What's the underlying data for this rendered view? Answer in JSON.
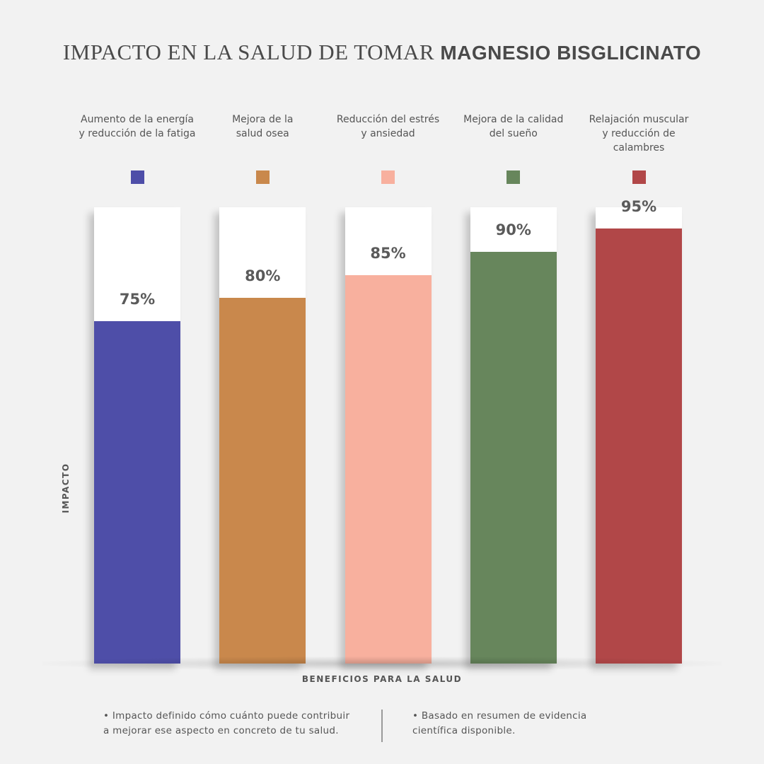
{
  "title": {
    "normal": "IMPACTO EN LA SALUD DE TOMAR ",
    "bold": "MAGNESIO BISGLICINATO"
  },
  "chart_data": {
    "type": "bar",
    "categories": [
      "Aumento de la energía\ny reducción de la fatiga",
      "Mejora de la\nsalud osea",
      "Reducción del estrés\ny ansiedad",
      "Mejora de la calidad\ndel sueño",
      "Relajación muscular\ny reducción de\ncalambres"
    ],
    "values": [
      75,
      80,
      85,
      90,
      95
    ],
    "value_labels": [
      "75%",
      "80%",
      "85%",
      "90%",
      "95%"
    ],
    "colors": [
      "#4e4ea8",
      "#c9884c",
      "#f8b09e",
      "#67865c",
      "#b14748"
    ],
    "ylim": [
      0,
      100
    ],
    "xlabel": "BENEFICIOS PARA LA SALUD",
    "ylabel": "IMPACTO",
    "grid": false
  },
  "notes": [
    "• Impacto definido cómo cuánto puede contribuir\n  a mejorar ese aspecto en concreto de tu salud.",
    "• Basado en resumen de evidencia\n  científica disponible."
  ]
}
